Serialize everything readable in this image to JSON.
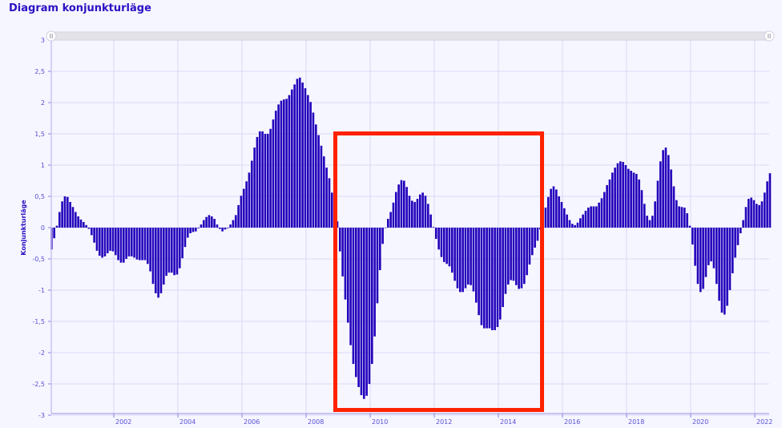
{
  "title": "Diagram konjunkturläge",
  "colors": {
    "bars": "#2200bb",
    "grid": "#d8d4f4",
    "highlight_box": "#ff2200",
    "text": "#2a12c4"
  },
  "chart_data": {
    "type": "bar",
    "title": "Diagram konjunkturläge",
    "xlabel": "",
    "ylabel": "Konjunkturläge",
    "frequency": "monthly",
    "ylim": [
      -3,
      3
    ],
    "yticks": [
      "3",
      "2,5",
      "2",
      "1,5",
      "1",
      "0,5",
      "0",
      "-0,5",
      "-1",
      "-1,5",
      "-2",
      "-2,5",
      "-3"
    ],
    "ytick_values": [
      3,
      2.5,
      2,
      1.5,
      1,
      0.5,
      0,
      -0.5,
      -1,
      -1.5,
      -2,
      -2.5,
      -3
    ],
    "xticks": [
      "2002",
      "2004",
      "2006",
      "2008",
      "2010",
      "2012",
      "2014",
      "2016",
      "2018",
      "2020",
      "2022"
    ],
    "grid": true,
    "range_slider": true,
    "highlight_period": [
      "2009-01",
      "2015-05"
    ],
    "values_by_year": {
      "2000": [
        -0.35,
        -0.17,
        0.03,
        0.25,
        0.42,
        0.5,
        0.49,
        0.41,
        0.33,
        0.25,
        0.18,
        0.13
      ],
      "2001": [
        0.09,
        0.04,
        -0.02,
        -0.12,
        -0.24,
        -0.37,
        -0.45,
        -0.48,
        -0.46,
        -0.41,
        -0.37,
        -0.38
      ],
      "2002": [
        -0.44,
        -0.52,
        -0.56,
        -0.56,
        -0.5,
        -0.46,
        -0.46,
        -0.48,
        -0.51,
        -0.52,
        -0.52,
        -0.52
      ],
      "2003": [
        -0.58,
        -0.7,
        -0.9,
        -1.05,
        -1.12,
        -1.05,
        -0.91,
        -0.77,
        -0.72,
        -0.72,
        -0.76,
        -0.75
      ],
      "2004": [
        -0.65,
        -0.49,
        -0.31,
        -0.16,
        -0.09,
        -0.07,
        -0.06,
        -0.01,
        0.05,
        0.12,
        0.17,
        0.2
      ],
      "2005": [
        0.18,
        0.14,
        0.05,
        -0.02,
        -0.06,
        -0.03,
        -0.01,
        0.05,
        0.12,
        0.2,
        0.36,
        0.51
      ],
      "2006": [
        0.62,
        0.74,
        0.88,
        1.07,
        1.28,
        1.45,
        1.54,
        1.54,
        1.5,
        1.5,
        1.58,
        1.73
      ],
      "2007": [
        1.87,
        1.97,
        2.03,
        2.05,
        2.06,
        2.12,
        2.21,
        2.29,
        2.38,
        2.4,
        2.32,
        2.23
      ],
      "2008": [
        2.12,
        2.01,
        1.84,
        1.65,
        1.48,
        1.31,
        1.14,
        0.96,
        0.79,
        0.56,
        0.32,
        0.1
      ],
      "2009": [
        -0.38,
        -0.78,
        -1.15,
        -1.52,
        -1.88,
        -2.18,
        -2.39,
        -2.55,
        -2.68,
        -2.74,
        -2.69,
        -2.5
      ],
      "2010": [
        -2.18,
        -1.74,
        -1.21,
        -0.68,
        -0.26,
        0.0,
        0.14,
        0.25,
        0.4,
        0.57,
        0.69,
        0.76
      ],
      "2011": [
        0.75,
        0.65,
        0.51,
        0.43,
        0.41,
        0.46,
        0.53,
        0.56,
        0.51,
        0.38,
        0.21,
        0.01
      ],
      "2012": [
        -0.18,
        -0.35,
        -0.47,
        -0.55,
        -0.58,
        -0.62,
        -0.72,
        -0.85,
        -0.97,
        -1.03,
        -1.03,
        -0.97
      ],
      "2013": [
        -0.91,
        -0.92,
        -1.02,
        -1.2,
        -1.4,
        -1.56,
        -1.61,
        -1.61,
        -1.61,
        -1.64,
        -1.64,
        -1.59
      ],
      "2014": [
        -1.47,
        -1.27,
        -1.06,
        -0.91,
        -0.84,
        -0.85,
        -0.92,
        -0.98,
        -0.97,
        -0.9,
        -0.76,
        -0.59
      ],
      "2015": [
        -0.44,
        -0.32,
        -0.21,
        -0.03,
        0.1,
        0.32,
        0.49,
        0.62,
        0.66,
        0.61,
        0.5,
        0.41
      ],
      "2016": [
        0.31,
        0.21,
        0.12,
        0.06,
        0.04,
        0.08,
        0.15,
        0.21,
        0.27,
        0.32,
        0.34,
        0.34
      ],
      "2017": [
        0.34,
        0.4,
        0.47,
        0.57,
        0.68,
        0.77,
        0.88,
        0.96,
        1.03,
        1.06,
        1.05,
        1.0
      ],
      "2018": [
        0.94,
        0.91,
        0.88,
        0.86,
        0.77,
        0.6,
        0.38,
        0.19,
        0.12,
        0.19,
        0.42,
        0.75
      ],
      "2019": [
        1.06,
        1.24,
        1.28,
        1.16,
        0.93,
        0.66,
        0.44,
        0.34,
        0.33,
        0.32,
        0.23,
        0.03
      ],
      "2020": [
        -0.27,
        -0.61,
        -0.9,
        -1.03,
        -0.98,
        -0.79,
        -0.6,
        -0.54,
        -0.65,
        -0.9,
        -1.17,
        -1.36
      ],
      "2021": [
        -1.39,
        -1.25,
        -1.0,
        -0.73,
        -0.48,
        -0.28,
        -0.09,
        0.12,
        0.33,
        0.46,
        0.48,
        0.44
      ],
      "2022": [
        0.38,
        0.36,
        0.42,
        0.56,
        0.74,
        0.87
      ]
    }
  }
}
